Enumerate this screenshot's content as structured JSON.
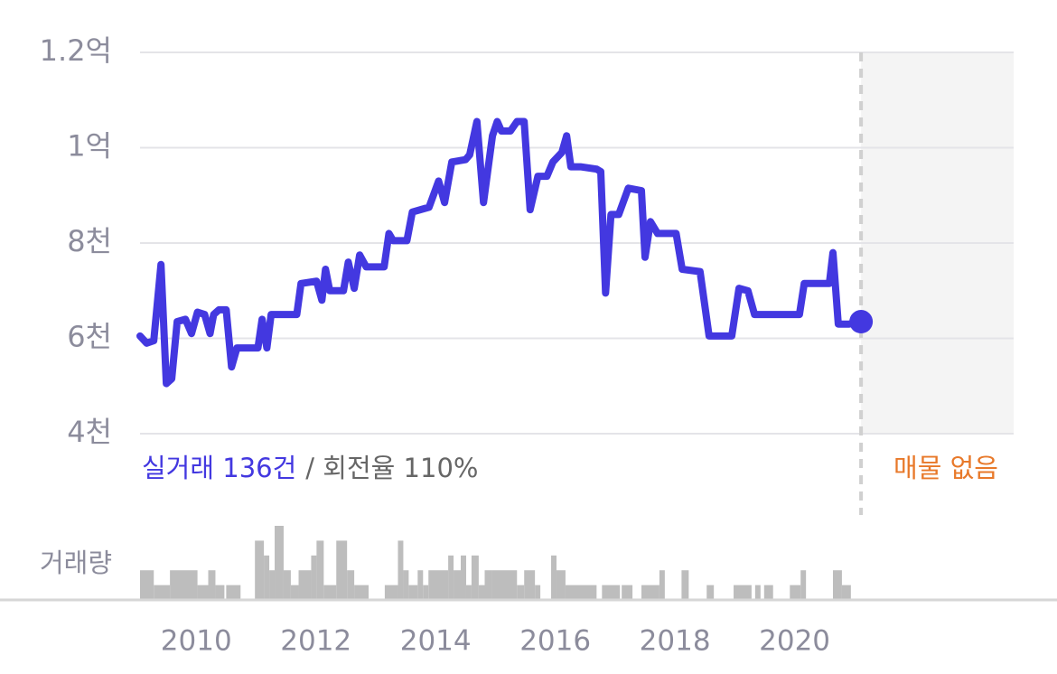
{
  "chart_data": [
    {
      "type": "line",
      "color": "#4338e0",
      "xlim": [
        2009.06,
        2023.66
      ],
      "ylim": [
        4000,
        12000
      ],
      "yticks": [
        {
          "value": 4000,
          "label": "4천"
        },
        {
          "value": 6000,
          "label": "6천"
        },
        {
          "value": 8000,
          "label": "8천"
        },
        {
          "value": 10000,
          "label": "1억"
        },
        {
          "value": 12000,
          "label": "1.2억"
        }
      ],
      "grid": true,
      "annotations": {
        "trades": "실거래 136건",
        "turnover": "/ 회전율 110%",
        "listings": "매물 없음"
      },
      "x": [
        2009.06,
        2009.17,
        2009.29,
        2009.41,
        2009.5,
        2009.59,
        2009.68,
        2009.82,
        2009.92,
        2010.02,
        2010.14,
        2010.23,
        2010.29,
        2010.38,
        2010.5,
        2010.59,
        2010.68,
        2011.03,
        2011.1,
        2011.18,
        2011.25,
        2011.68,
        2011.75,
        2012.01,
        2012.1,
        2012.16,
        2012.23,
        2012.46,
        2012.54,
        2012.64,
        2012.73,
        2012.84,
        2013.14,
        2013.22,
        2013.29,
        2013.52,
        2013.61,
        2013.89,
        2014.05,
        2014.15,
        2014.27,
        2014.5,
        2014.57,
        2014.69,
        2014.8,
        2014.88,
        2014.95,
        2015.03,
        2015.1,
        2015.25,
        2015.36,
        2015.48,
        2015.58,
        2015.71,
        2015.86,
        2015.96,
        2016.11,
        2016.19,
        2016.26,
        2016.42,
        2016.69,
        2016.76,
        2016.84,
        2016.93,
        2017.06,
        2017.22,
        2017.44,
        2017.5,
        2017.59,
        2017.71,
        2018.02,
        2018.12,
        2018.42,
        2018.57,
        2018.95,
        2019.07,
        2019.22,
        2019.33,
        2020.08,
        2020.16,
        2020.58,
        2020.64,
        2020.73,
        2020.91,
        2021.11
      ],
      "values": [
        6050,
        5900,
        5950,
        7550,
        5050,
        5150,
        6350,
        6400,
        6100,
        6550,
        6500,
        6100,
        6500,
        6600,
        6600,
        5400,
        5800,
        5800,
        6400,
        5800,
        6500,
        6500,
        7150,
        7200,
        6800,
        7450,
        7000,
        7000,
        7600,
        7050,
        7750,
        7500,
        7500,
        8200,
        8050,
        8050,
        8650,
        8750,
        9300,
        8850,
        9700,
        9750,
        9850,
        10550,
        8850,
        9600,
        10250,
        10550,
        10350,
        10350,
        10550,
        10550,
        8700,
        9400,
        9400,
        9700,
        9900,
        10250,
        9600,
        9600,
        9550,
        9500,
        6950,
        8600,
        8600,
        9150,
        9100,
        7700,
        8450,
        8200,
        8200,
        7450,
        7400,
        6050,
        6050,
        7050,
        7000,
        6500,
        6500,
        7150,
        7150,
        7800,
        6300,
        6300,
        6350
      ]
    },
    {
      "type": "histogram",
      "color": "#bdbdbd",
      "ylabel": "거래량",
      "xlim": [
        2009.06,
        2023.66
      ],
      "ylim": [
        0,
        5
      ],
      "xticks": [
        2010,
        2012,
        2014,
        2016,
        2018,
        2020
      ],
      "bins": [
        2009.06,
        2009.29,
        2009.56,
        2010.02,
        2010.2,
        2010.32,
        2010.47,
        2010.5,
        2010.74,
        2010.98,
        2011.13,
        2011.22,
        2011.31,
        2011.46,
        2011.58,
        2011.71,
        2011.92,
        2012.01,
        2012.13,
        2012.34,
        2012.52,
        2012.64,
        2012.88,
        2013.15,
        2013.37,
        2013.46,
        2013.55,
        2013.7,
        2013.79,
        2013.88,
        2014.21,
        2014.3,
        2014.42,
        2014.51,
        2014.6,
        2014.72,
        2014.82,
        2014.94,
        2015.36,
        2015.48,
        2015.66,
        2015.75,
        2015.93,
        2016.02,
        2016.17,
        2016.69,
        2016.78,
        2017.08,
        2017.11,
        2017.29,
        2017.44,
        2017.74,
        2017.83,
        2018.11,
        2018.23,
        2018.53,
        2018.65,
        2018.98,
        2019.28,
        2019.34,
        2019.43,
        2019.49,
        2019.64,
        2019.92,
        2020.1,
        2020.19,
        2020.64,
        2020.79,
        2020.94
      ],
      "values": [
        2,
        1,
        2,
        1,
        2,
        1,
        0,
        1,
        0,
        4,
        3,
        2,
        5,
        2,
        1,
        2,
        3,
        4,
        1,
        4,
        2,
        1,
        0,
        1,
        4,
        2,
        1,
        2,
        1,
        2,
        3,
        2,
        3,
        1,
        3,
        1,
        2,
        2,
        1,
        2,
        1,
        0,
        3,
        2,
        1,
        0,
        1,
        0,
        1,
        0,
        1,
        2,
        0,
        2,
        0,
        1,
        0,
        1,
        0,
        1,
        0,
        1,
        0,
        1,
        2,
        0,
        2,
        1
      ]
    }
  ]
}
